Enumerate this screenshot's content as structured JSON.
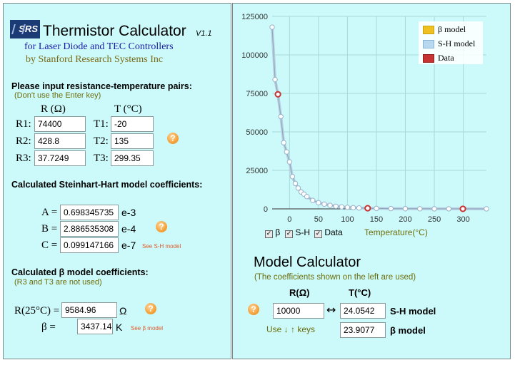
{
  "header": {
    "logo_text": "SRS",
    "title": "Thermistor Calculator",
    "version": "V1.1",
    "subtitle1": "for Laser Diode and TEC Controllers",
    "subtitle2": "by Stanford Research Systems Inc"
  },
  "input_section": {
    "heading": "Please input resistance-temperature pairs:",
    "note": "(Don't use the Enter key)",
    "col_r": "R (Ω)",
    "col_t": "T (°C)",
    "rows": [
      {
        "r_label": "R1:",
        "r_value": "74400",
        "t_label": "T1:",
        "t_value": "-20"
      },
      {
        "r_label": "R2:",
        "r_value": "428.8",
        "t_label": "T2:",
        "t_value": "135"
      },
      {
        "r_label": "R3:",
        "r_value": "37.7249",
        "t_label": "T3:",
        "t_value": "299.35"
      }
    ],
    "help_icon": "question-icon"
  },
  "sh_section": {
    "heading": "Calculated Steinhart-Hart model coefficients:",
    "rows": [
      {
        "label": "A =",
        "value": "0.698345735",
        "exp": "e-3"
      },
      {
        "label": "B =",
        "value": "2.886535308",
        "exp": "e-4"
      },
      {
        "label": "C =",
        "value": "0.099147166",
        "exp": "e-7"
      }
    ],
    "link": "See S-H model"
  },
  "beta_section": {
    "heading": "Calculated β model coefficients:",
    "note": "(R3 and T3 are not used)",
    "r25_label": "R(25°C) =",
    "r25_value": "9584.96",
    "r25_unit": "Ω",
    "beta_label": "β =",
    "beta_value": "3437.14",
    "beta_unit": "K",
    "link": "See β model"
  },
  "chart_data": {
    "type": "line",
    "xlabel": "Temperature(°C)",
    "xlim": [
      -30,
      340
    ],
    "ylim": [
      0,
      125000
    ],
    "x_ticks": [
      0,
      50,
      100,
      150,
      200,
      250,
      300
    ],
    "y_ticks": [
      0,
      25000,
      50000,
      75000,
      100000,
      125000
    ],
    "y_tick_labels": [
      "0",
      "25000",
      "50000",
      "75000",
      "100000",
      "125000"
    ],
    "legend": [
      {
        "name": "β model",
        "color": "#f0c020"
      },
      {
        "name": "S-H model",
        "color": "#b8d8f0"
      },
      {
        "name": "Data",
        "color": "#c83232"
      }
    ],
    "legend_position": "top-right",
    "toggles": [
      {
        "label": "β",
        "checked": true
      },
      {
        "label": "S-H",
        "checked": true
      },
      {
        "label": "Data",
        "checked": true
      }
    ],
    "curve": {
      "x": [
        -30,
        -25,
        -20,
        -15,
        -10,
        -5,
        0,
        5,
        10,
        15,
        20,
        25,
        30,
        40,
        50,
        60,
        70,
        80,
        90,
        100,
        110,
        120,
        135,
        150,
        175,
        200,
        225,
        250,
        275,
        300,
        340
      ],
      "y": [
        118000,
        84000,
        74400,
        60000,
        43000,
        37000,
        30500,
        21000,
        16500,
        13500,
        11000,
        9585,
        8000,
        5500,
        4000,
        3100,
        2300,
        1700,
        1300,
        1000,
        800,
        600,
        428.8,
        300,
        180,
        110,
        80,
        60,
        48,
        37.7,
        20
      ]
    },
    "data_points": {
      "x": [
        -20,
        135,
        299.35
      ],
      "y": [
        74400,
        428.8,
        37.7249
      ]
    }
  },
  "model_calculator": {
    "title": "Model Calculator",
    "note": "(The coefficients shown on the left are used)",
    "col_r": "R(Ω)",
    "col_t": "T(°C)",
    "r_value": "10000",
    "arrow": "↔",
    "sh_value": "24.0542",
    "sh_label": "S-H model",
    "beta_value": "23.9077",
    "beta_label": "β model",
    "keys_hint": "Use ↓ ↑ keys"
  },
  "colors": {
    "panel_bg": "#ccfafa",
    "sh_line": "#b8d8f0",
    "beta_line": "#f0c020",
    "data_marker": "#c83232"
  }
}
